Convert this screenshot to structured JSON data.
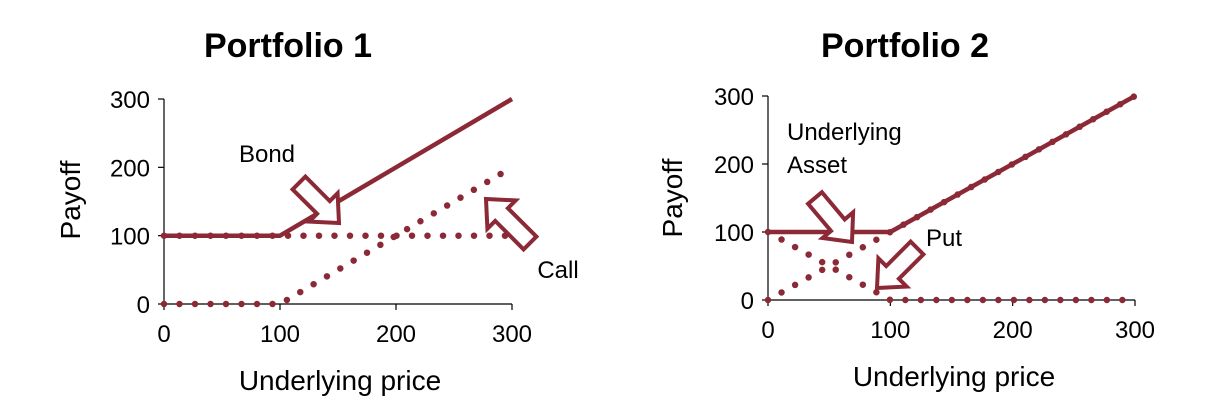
{
  "line_color": "#8b2a36",
  "chart_data": [
    {
      "type": "line",
      "title": "Portfolio 1",
      "xlabel": "Underlying price",
      "ylabel": "Payoff",
      "xlim": [
        0,
        300
      ],
      "ylim": [
        0,
        300
      ],
      "xticks": [
        "0",
        "100",
        "200",
        "300"
      ],
      "yticks": [
        "0",
        "100",
        "200",
        "300"
      ],
      "series": [
        {
          "style": "solid",
          "x": [
            0,
            100,
            300
          ],
          "y": [
            100,
            100,
            300
          ]
        },
        {
          "style": "dotted",
          "x": [
            0,
            300
          ],
          "y": [
            100,
            100
          ]
        },
        {
          "style": "dotted",
          "x": [
            0,
            100,
            300
          ],
          "y": [
            0,
            0,
            200
          ]
        }
      ],
      "annotations": [
        {
          "text": "Bond",
          "arrow_direction": "down-right"
        },
        {
          "text": "Call",
          "arrow_direction": "up-left"
        }
      ]
    },
    {
      "type": "line",
      "title": "Portfolio 2",
      "xlabel": "Underlying price",
      "ylabel": "Payoff",
      "xlim": [
        0,
        300
      ],
      "ylim": [
        0,
        300
      ],
      "xticks": [
        "0",
        "100",
        "200",
        "300"
      ],
      "yticks": [
        "0",
        "100",
        "200",
        "300"
      ],
      "series": [
        {
          "style": "solid",
          "x": [
            0,
            100,
            300
          ],
          "y": [
            100,
            100,
            300
          ]
        },
        {
          "style": "dotted",
          "x": [
            0,
            100,
            300
          ],
          "y": [
            0,
            100,
            300
          ]
        },
        {
          "style": "dotted",
          "x": [
            0,
            100,
            300
          ],
          "y": [
            100,
            0,
            0
          ]
        }
      ],
      "annotations": [
        {
          "text": "Underlying",
          "arrow_direction": "down-right"
        },
        {
          "text": "Asset",
          "arrow_direction": "down-right"
        },
        {
          "text": "Put",
          "arrow_direction": "down-left"
        }
      ]
    }
  ]
}
